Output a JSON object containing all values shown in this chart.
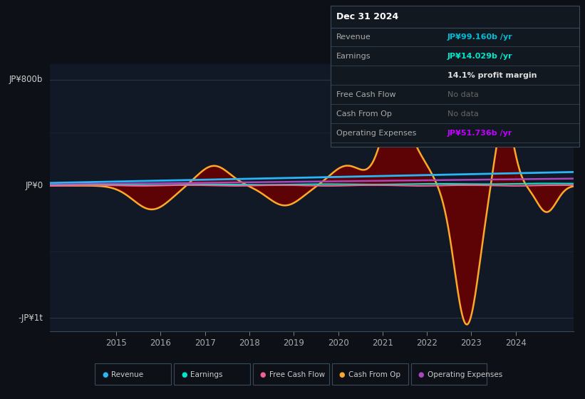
{
  "bg_color": "#0d1117",
  "plot_bg_color": "#111927",
  "title": "Dec 31 2024",
  "info_box_rows": [
    {
      "label": "Revenue",
      "value": "JP¥99.160b /yr",
      "vcolor": "#00bcd4",
      "nodata": false
    },
    {
      "label": "Earnings",
      "value": "JP¥14.029b /yr",
      "vcolor": "#00e5cc",
      "nodata": false
    },
    {
      "label": "",
      "value": "14.1% profit margin",
      "vcolor": "#dddddd",
      "nodata": false
    },
    {
      "label": "Free Cash Flow",
      "value": "No data",
      "vcolor": "#666666",
      "nodata": true
    },
    {
      "label": "Cash From Op",
      "value": "No data",
      "vcolor": "#666666",
      "nodata": true
    },
    {
      "label": "Operating Expenses",
      "value": "JP¥51.736b /yr",
      "vcolor": "#bf00ff",
      "nodata": false
    }
  ],
  "ylabel_top": "JP¥800b",
  "ylabel_bottom": "-JP¥1t",
  "ylabel_zero": "JP¥0",
  "xlim": [
    2013.5,
    2025.3
  ],
  "ylim": [
    -1100,
    920
  ],
  "y_800": 800,
  "y_neg1000": -1000,
  "revenue_color": "#29b6f6",
  "earnings_color": "#00e5cc",
  "free_cash_flow_color": "#f06292",
  "cash_from_op_color": "#ffa726",
  "cash_from_op_fill": "#6b0000",
  "operating_expenses_color": "#ab47bc",
  "grid_color": "#2a3545",
  "zero_line_color": "#cccccc",
  "legend": [
    {
      "label": "Revenue",
      "color": "#29b6f6"
    },
    {
      "label": "Earnings",
      "color": "#00e5cc"
    },
    {
      "label": "Free Cash Flow",
      "color": "#f06292"
    },
    {
      "label": "Cash From Op",
      "color": "#ffa726"
    },
    {
      "label": "Operating Expenses",
      "color": "#ab47bc"
    }
  ]
}
